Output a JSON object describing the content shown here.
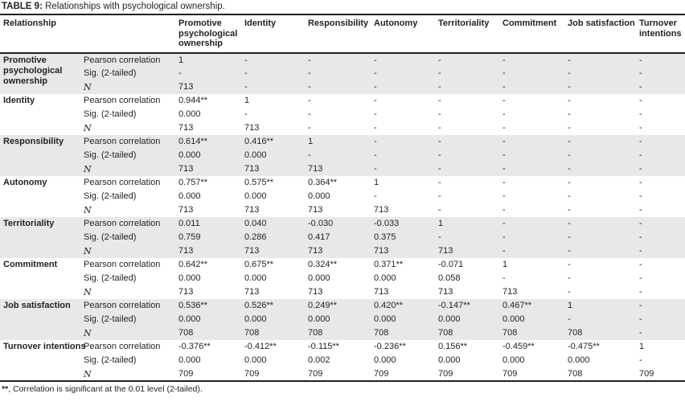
{
  "colors": {
    "band_bg": "#e8e8e8",
    "rule": "#231f20",
    "text": "#231f20"
  },
  "table": {
    "title_label": "TABLE 9:",
    "title_text": "Relationships with psychological ownership.",
    "columns": [
      "Relationship",
      "",
      "Promotive psychological ownership",
      "Identity",
      "Responsibility",
      "Autonomy",
      "Territoriality",
      "Commitment",
      "Job satisfaction",
      "Turnover intentions"
    ],
    "row_labels": {
      "pearson": "Pearson correlation",
      "sig": "Sig. (2-tailed)",
      "n": "N"
    },
    "groups": [
      {
        "name": "Promotive psychological ownership",
        "pearson": [
          "1",
          "-",
          "-",
          "-",
          "-",
          "-",
          "-",
          "-"
        ],
        "sig": [
          "-",
          "-",
          "-",
          "-",
          "-",
          "-",
          "-",
          "-"
        ],
        "n": [
          "713",
          "-",
          "-",
          "-",
          "-",
          "-",
          "-",
          "-"
        ]
      },
      {
        "name": "Identity",
        "pearson": [
          "0.944**",
          "1",
          "-",
          "-",
          "-",
          "-",
          "-",
          "-"
        ],
        "sig": [
          "0.000",
          "-",
          "-",
          "-",
          "-",
          "-",
          "-",
          "-"
        ],
        "n": [
          "713",
          "713",
          "-",
          "-",
          "-",
          "-",
          "-",
          "-"
        ]
      },
      {
        "name": "Responsibility",
        "pearson": [
          "0.614**",
          "0.416**",
          "1",
          "-",
          "-",
          "-",
          "-",
          "-"
        ],
        "sig": [
          "0.000",
          "0.000",
          "-",
          "-",
          "-",
          "-",
          "-",
          "-"
        ],
        "n": [
          "713",
          "713",
          "713",
          "-",
          "-",
          "-",
          "-",
          "-"
        ]
      },
      {
        "name": "Autonomy",
        "pearson": [
          "0.757**",
          "0.575**",
          "0.364**",
          "1",
          "-",
          "-",
          "-",
          "-"
        ],
        "sig": [
          "0.000",
          "0.000",
          "0.000",
          "-",
          "-",
          "-",
          "-",
          "-"
        ],
        "n": [
          "713",
          "713",
          "713",
          "713",
          "-",
          "-",
          "-",
          "-"
        ]
      },
      {
        "name": "Territoriality",
        "pearson": [
          "0.011",
          "0.040",
          "-0.030",
          "-0.033",
          "1",
          "-",
          "-",
          "-"
        ],
        "sig": [
          "0.759",
          "0.286",
          "0.417",
          "0.375",
          "-",
          "-",
          "-",
          "-"
        ],
        "n": [
          "713",
          "713",
          "713",
          "713",
          "713",
          "-",
          "-",
          "-"
        ]
      },
      {
        "name": "Commitment",
        "pearson": [
          "0.642**",
          "0.675**",
          "0.324**",
          "0.371**",
          "-0.071",
          "1",
          "-",
          "-"
        ],
        "sig": [
          "0.000",
          "0.000",
          "0.000",
          "0.000",
          "0.058",
          "-",
          "-",
          "-"
        ],
        "n": [
          "713",
          "713",
          "713",
          "713",
          "713",
          "713",
          "-",
          "-"
        ]
      },
      {
        "name": "Job satisfaction",
        "pearson": [
          "0.536**",
          "0.526**",
          "0.249**",
          "0.420**",
          "-0.147**",
          "0.467**",
          "1",
          "-"
        ],
        "sig": [
          "0.000",
          "0.000",
          "0.000",
          "0.000",
          "0.000",
          "0.000",
          "-",
          "-"
        ],
        "n": [
          "708",
          "708",
          "708",
          "708",
          "708",
          "708",
          "708",
          "-"
        ]
      },
      {
        "name": "Turnover intentions",
        "pearson": [
          "-0.376**",
          "-0.412**",
          "-0.115**",
          "-0.236**",
          "0.156**",
          "-0.459**",
          "-0.475**",
          "1"
        ],
        "sig": [
          "0.000",
          "0.000",
          "0.002",
          "0.000",
          "0.000",
          "0.000",
          "0.000",
          "-"
        ],
        "n": [
          "709",
          "709",
          "709",
          "709",
          "709",
          "709",
          "708",
          "709"
        ]
      }
    ],
    "footnote_marker": "**",
    "footnote_text": ", Correlation is significant at the 0.01 level (2-tailed)."
  }
}
